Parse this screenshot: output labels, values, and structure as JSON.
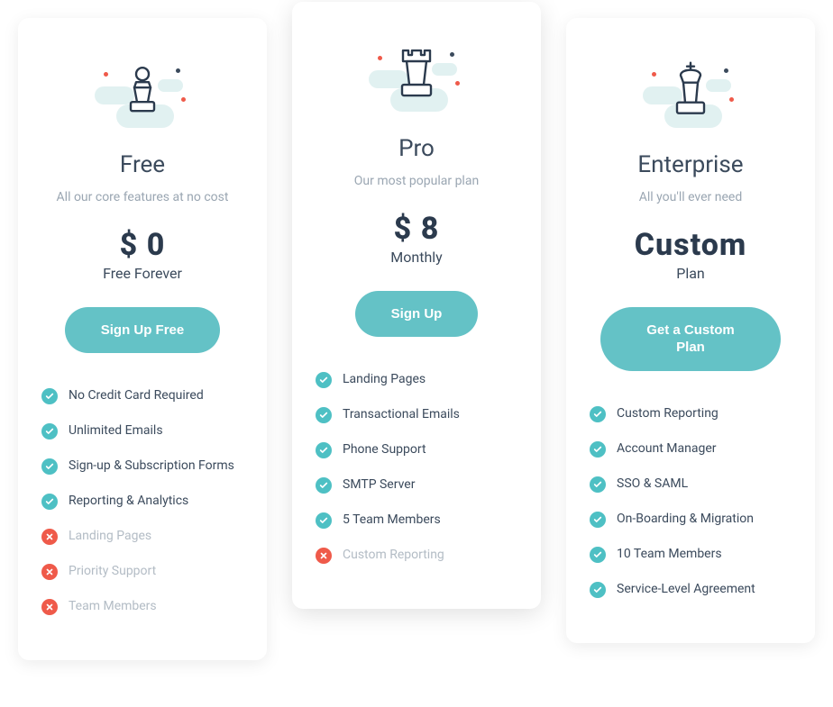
{
  "colors": {
    "accent": "#64c2c6",
    "ok_badge": "#4ec0c4",
    "no_badge": "#ef5a4a",
    "text_primary": "#3b4a5c",
    "text_muted": "#9aa6b2",
    "card_bg": "#ffffff"
  },
  "plans": [
    {
      "key": "free",
      "icon": "pawn",
      "name": "Free",
      "tagline": "All our core features at no cost",
      "price": "$ 0",
      "price_sub": "Free Forever",
      "cta": "Sign Up Free",
      "featured": false,
      "features": [
        {
          "label": "No Credit Card Required",
          "included": true
        },
        {
          "label": "Unlimited Emails",
          "included": true
        },
        {
          "label": "Sign-up & Subscription Forms",
          "included": true
        },
        {
          "label": "Reporting & Analytics",
          "included": true
        },
        {
          "label": "Landing Pages",
          "included": false
        },
        {
          "label": "Priority Support",
          "included": false
        },
        {
          "label": "Team Members",
          "included": false
        }
      ]
    },
    {
      "key": "pro",
      "icon": "rook",
      "name": "Pro",
      "tagline": "Our most popular plan",
      "price": "$ 8",
      "price_sub": "Monthly",
      "cta": "Sign Up",
      "featured": true,
      "features": [
        {
          "label": "Landing Pages",
          "included": true
        },
        {
          "label": "Transactional Emails",
          "included": true
        },
        {
          "label": "Phone Support",
          "included": true
        },
        {
          "label": "SMTP Server",
          "included": true
        },
        {
          "label": "5 Team Members",
          "included": true
        },
        {
          "label": "Custom Reporting",
          "included": false
        }
      ]
    },
    {
      "key": "enterprise",
      "icon": "king",
      "name": "Enterprise",
      "tagline": "All you'll ever need",
      "price": "Custom",
      "price_sub": "Plan",
      "cta": "Get a Custom Plan",
      "featured": false,
      "features": [
        {
          "label": "Custom Reporting",
          "included": true
        },
        {
          "label": "Account Manager",
          "included": true
        },
        {
          "label": "SSO & SAML",
          "included": true
        },
        {
          "label": "On-Boarding & Migration",
          "included": true
        },
        {
          "label": "10 Team Members",
          "included": true
        },
        {
          "label": "Service-Level Agreement",
          "included": true
        }
      ]
    }
  ]
}
